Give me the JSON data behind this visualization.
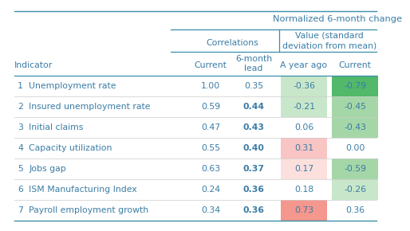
{
  "title": "Normalized 6-month change",
  "rows": [
    {
      "num": "1",
      "name": "Unemployment rate",
      "corr_cur": "1.00",
      "corr_lead": "0.35",
      "val_year": "-0.36",
      "val_cur": "-0.79",
      "lead_bold": false,
      "year_color": "green_light",
      "cur_color": "green_dark"
    },
    {
      "num": "2",
      "name": "Insured unemployment rate",
      "corr_cur": "0.59",
      "corr_lead": "0.44",
      "val_year": "-0.21",
      "val_cur": "-0.45",
      "lead_bold": true,
      "year_color": "green_light",
      "cur_color": "green_med"
    },
    {
      "num": "3",
      "name": "Initial claims",
      "corr_cur": "0.47",
      "corr_lead": "0.43",
      "val_year": "0.06",
      "val_cur": "-0.43",
      "lead_bold": true,
      "year_color": "none",
      "cur_color": "green_med"
    },
    {
      "num": "4",
      "name": "Capacity utilization",
      "corr_cur": "0.55",
      "corr_lead": "0.40",
      "val_year": "0.31",
      "val_cur": "0.00",
      "lead_bold": true,
      "year_color": "red_light",
      "cur_color": "none"
    },
    {
      "num": "5",
      "name": "Jobs gap",
      "corr_cur": "0.63",
      "corr_lead": "0.37",
      "val_year": "0.17",
      "val_cur": "-0.59",
      "lead_bold": true,
      "year_color": "red_vlight",
      "cur_color": "green_med"
    },
    {
      "num": "6",
      "name": "ISM Manufacturing Index",
      "corr_cur": "0.24",
      "corr_lead": "0.36",
      "val_year": "0.18",
      "val_cur": "-0.26",
      "lead_bold": true,
      "year_color": "none",
      "cur_color": "green_light"
    },
    {
      "num": "7",
      "name": "Payroll employment growth",
      "corr_cur": "0.34",
      "corr_lead": "0.36",
      "val_year": "0.73",
      "val_cur": "0.36",
      "lead_bold": true,
      "year_color": "red_med",
      "cur_color": "none"
    }
  ],
  "color_map": {
    "green_dark": "#52b86a",
    "green_med": "#a5d6a7",
    "green_light": "#c8e6c9",
    "red_med": "#f4978e",
    "red_light": "#f8c4c4",
    "red_vlight": "#fce0dd",
    "none": "#ffffff"
  },
  "text_color": "#3a7ca5",
  "border_color": "#3a8faa",
  "separator_color": "#cccccc",
  "bg_color": "#ffffff",
  "fontsize": 7.8,
  "header_fontsize": 7.8,
  "title_fontsize": 8.2
}
